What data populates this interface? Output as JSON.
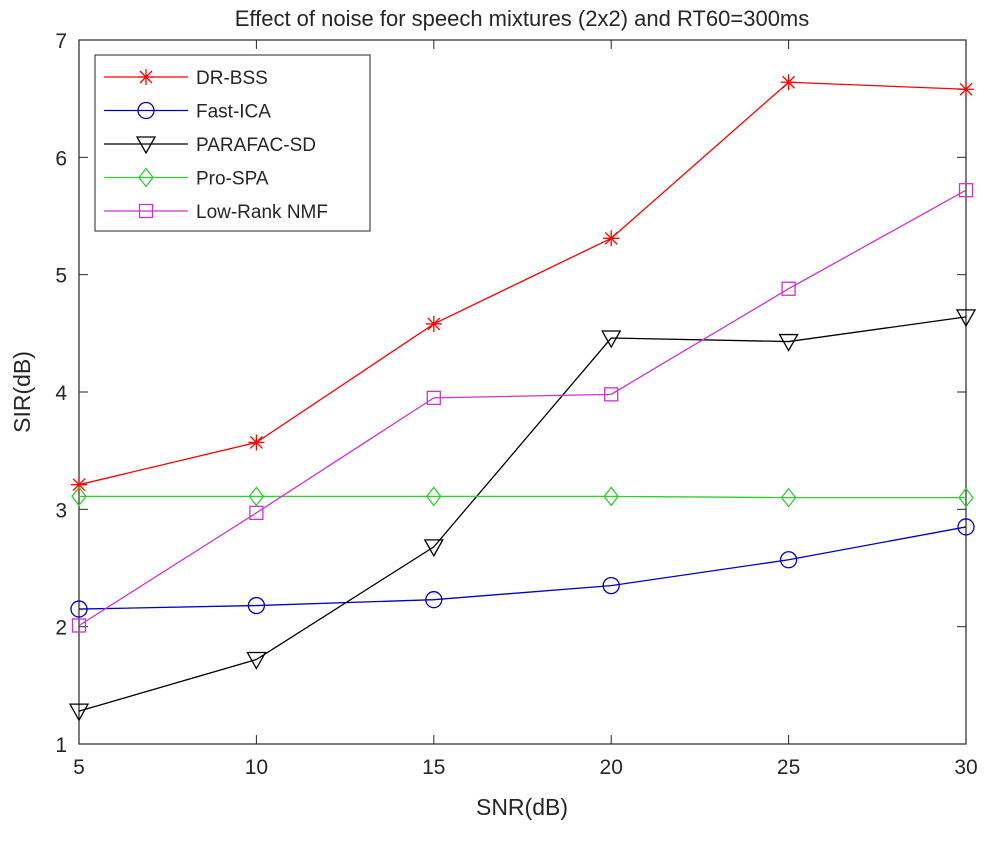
{
  "chart_data": {
    "type": "line",
    "title": "Effect of noise for speech mixtures (2x2) and RT60=300ms",
    "xlabel": "SNR(dB)",
    "ylabel": "SIR(dB)",
    "xlim": [
      5,
      30
    ],
    "ylim": [
      1,
      7
    ],
    "xticks": [
      5,
      10,
      15,
      20,
      25,
      30
    ],
    "yticks": [
      1,
      2,
      3,
      4,
      5,
      6,
      7
    ],
    "grid": false,
    "legend_position": "top-left",
    "x": [
      5,
      10,
      15,
      20,
      25,
      30
    ],
    "series": [
      {
        "name": "DR-BSS",
        "color": "#ff0000",
        "marker": "asterisk",
        "values": [
          3.21,
          3.57,
          4.58,
          5.31,
          6.64,
          6.58
        ]
      },
      {
        "name": "Fast-ICA",
        "color": "#0000c0",
        "marker": "circle",
        "values": [
          2.15,
          2.18,
          2.23,
          2.35,
          2.57,
          2.85
        ]
      },
      {
        "name": "PARAFAC-SD",
        "color": "#000000",
        "marker": "triangle-down",
        "values": [
          1.28,
          1.72,
          2.68,
          4.46,
          4.43,
          4.64
        ]
      },
      {
        "name": "Pro-SPA",
        "color": "#33cc33",
        "marker": "diamond",
        "values": [
          3.11,
          3.11,
          3.11,
          3.11,
          3.1,
          3.1
        ]
      },
      {
        "name": "Low-Rank NMF",
        "color": "#cc33cc",
        "marker": "square",
        "values": [
          2.01,
          2.97,
          3.95,
          3.98,
          4.88,
          5.72
        ]
      }
    ]
  }
}
